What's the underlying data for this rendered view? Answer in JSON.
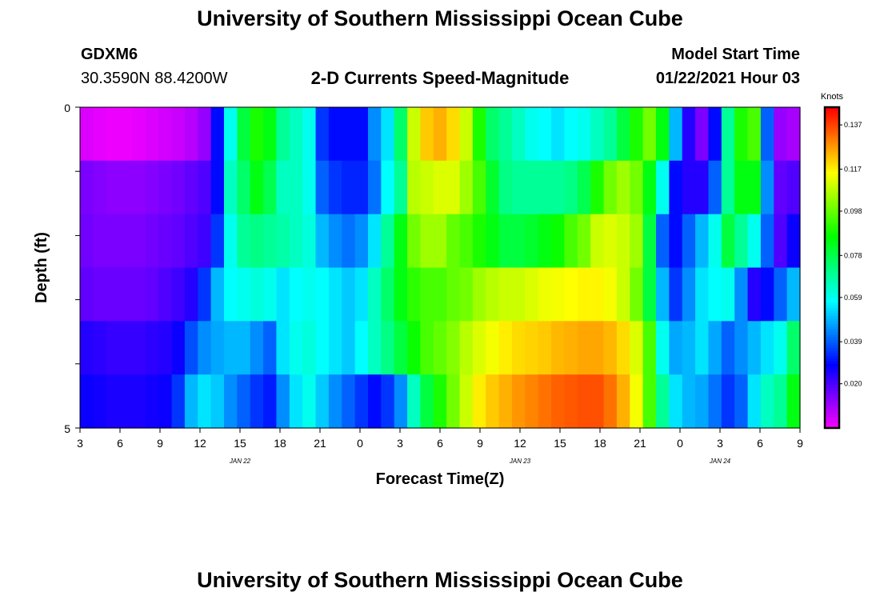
{
  "page": {
    "title": "University of Southern Mississippi Ocean Cube",
    "footer_title": "University of Southern Mississippi Ocean Cube",
    "station": "GDXM6",
    "location": "30.3590N 88.4200W",
    "plot_title": "2-D Currents Speed-Magnitude",
    "start_label": "Model Start Time",
    "start_value": "01/22/2021 Hour 03"
  },
  "chart_data": {
    "type": "heatmap",
    "title": "2-D Currents Speed-Magnitude",
    "xlabel": "Forecast Time(Z)",
    "ylabel": "Depth (ft)",
    "colorbar_label": "Knots",
    "colorbar_ticks": [
      "0.020",
      "0.039",
      "0.059",
      "0.078",
      "0.098",
      "0.117",
      "0.137"
    ],
    "color_range": [
      0.0,
      0.145
    ],
    "y_tick_labels": [
      "0",
      "5"
    ],
    "ylim": [
      0,
      5
    ],
    "x_tick_labels": [
      "3",
      "6",
      "9",
      "12",
      "15",
      "18",
      "21",
      "0",
      "3",
      "6",
      "9",
      "12",
      "15",
      "18",
      "21",
      "0",
      "3",
      "6",
      "9"
    ],
    "date_labels": [
      {
        "text": "JAN  22",
        "at_tick": 4
      },
      {
        "text": "JAN  23",
        "at_tick": 11
      },
      {
        "text": "JAN  24",
        "at_tick": 16
      }
    ],
    "x_hours": [
      3,
      4,
      5,
      6,
      7,
      8,
      9,
      10,
      11,
      12,
      13,
      14,
      15,
      16,
      17,
      18,
      19,
      20,
      21,
      22,
      23,
      24,
      25,
      26,
      27,
      28,
      29,
      30,
      31,
      32,
      33,
      34,
      35,
      36,
      37,
      38,
      39,
      40,
      41,
      42,
      43,
      44,
      45,
      46,
      47,
      48,
      49,
      50,
      51,
      52,
      53,
      54,
      55,
      56,
      57
    ],
    "depth_levels": [
      0,
      1,
      2,
      3,
      4,
      5
    ],
    "values": [
      [
        0.004,
        0.003,
        0.002,
        0.002,
        0.003,
        0.004,
        0.005,
        0.006,
        0.008,
        0.012,
        0.03,
        0.06,
        0.08,
        0.09,
        0.085,
        0.07,
        0.065,
        0.06,
        0.035,
        0.03,
        0.03,
        0.03,
        0.045,
        0.055,
        0.075,
        0.11,
        0.122,
        0.125,
        0.12,
        0.11,
        0.09,
        0.075,
        0.07,
        0.065,
        0.06,
        0.058,
        0.055,
        0.058,
        0.06,
        0.065,
        0.07,
        0.08,
        0.09,
        0.1,
        0.085,
        0.05,
        0.025,
        0.015,
        0.03,
        0.07,
        0.09,
        0.095,
        0.04,
        0.012,
        0.01
      ],
      [
        0.015,
        0.014,
        0.013,
        0.013,
        0.013,
        0.014,
        0.015,
        0.016,
        0.018,
        0.02,
        0.03,
        0.065,
        0.075,
        0.085,
        0.078,
        0.065,
        0.065,
        0.06,
        0.04,
        0.035,
        0.033,
        0.033,
        0.042,
        0.058,
        0.07,
        0.108,
        0.11,
        0.112,
        0.112,
        0.105,
        0.095,
        0.082,
        0.072,
        0.07,
        0.07,
        0.07,
        0.07,
        0.072,
        0.078,
        0.09,
        0.1,
        0.105,
        0.1,
        0.085,
        0.06,
        0.03,
        0.025,
        0.025,
        0.04,
        0.07,
        0.085,
        0.085,
        0.045,
        0.018,
        0.02
      ],
      [
        0.016,
        0.015,
        0.015,
        0.015,
        0.015,
        0.016,
        0.017,
        0.018,
        0.02,
        0.022,
        0.035,
        0.06,
        0.07,
        0.072,
        0.07,
        0.068,
        0.065,
        0.062,
        0.05,
        0.045,
        0.042,
        0.045,
        0.055,
        0.07,
        0.085,
        0.1,
        0.105,
        0.105,
        0.098,
        0.095,
        0.09,
        0.085,
        0.08,
        0.08,
        0.082,
        0.085,
        0.088,
        0.095,
        0.1,
        0.11,
        0.112,
        0.11,
        0.105,
        0.08,
        0.04,
        0.03,
        0.04,
        0.05,
        0.06,
        0.08,
        0.07,
        0.06,
        0.04,
        0.02,
        0.028
      ],
      [
        0.018,
        0.017,
        0.017,
        0.017,
        0.017,
        0.018,
        0.02,
        0.022,
        0.025,
        0.035,
        0.05,
        0.058,
        0.06,
        0.062,
        0.06,
        0.055,
        0.058,
        0.06,
        0.058,
        0.055,
        0.052,
        0.055,
        0.065,
        0.075,
        0.085,
        0.092,
        0.095,
        0.095,
        0.098,
        0.1,
        0.105,
        0.108,
        0.11,
        0.11,
        0.112,
        0.114,
        0.115,
        0.116,
        0.117,
        0.117,
        0.115,
        0.11,
        0.1,
        0.08,
        0.05,
        0.035,
        0.045,
        0.055,
        0.058,
        0.06,
        0.045,
        0.025,
        0.03,
        0.04,
        0.05
      ],
      [
        0.025,
        0.024,
        0.023,
        0.023,
        0.023,
        0.024,
        0.025,
        0.028,
        0.038,
        0.045,
        0.048,
        0.05,
        0.05,
        0.045,
        0.04,
        0.055,
        0.06,
        0.062,
        0.058,
        0.055,
        0.052,
        0.058,
        0.065,
        0.072,
        0.08,
        0.088,
        0.095,
        0.098,
        0.102,
        0.108,
        0.112,
        0.115,
        0.118,
        0.12,
        0.121,
        0.122,
        0.124,
        0.125,
        0.126,
        0.126,
        0.124,
        0.12,
        0.112,
        0.095,
        0.06,
        0.048,
        0.05,
        0.055,
        0.048,
        0.04,
        0.045,
        0.05,
        0.055,
        0.06,
        0.075
      ],
      [
        0.028,
        0.027,
        0.026,
        0.026,
        0.026,
        0.027,
        0.028,
        0.035,
        0.05,
        0.055,
        0.052,
        0.045,
        0.04,
        0.035,
        0.032,
        0.045,
        0.055,
        0.06,
        0.052,
        0.045,
        0.04,
        0.035,
        0.03,
        0.035,
        0.045,
        0.065,
        0.08,
        0.09,
        0.1,
        0.11,
        0.118,
        0.122,
        0.125,
        0.128,
        0.13,
        0.132,
        0.134,
        0.135,
        0.136,
        0.136,
        0.132,
        0.125,
        0.115,
        0.095,
        0.07,
        0.055,
        0.05,
        0.048,
        0.042,
        0.035,
        0.04,
        0.055,
        0.065,
        0.07,
        0.085
      ]
    ]
  }
}
